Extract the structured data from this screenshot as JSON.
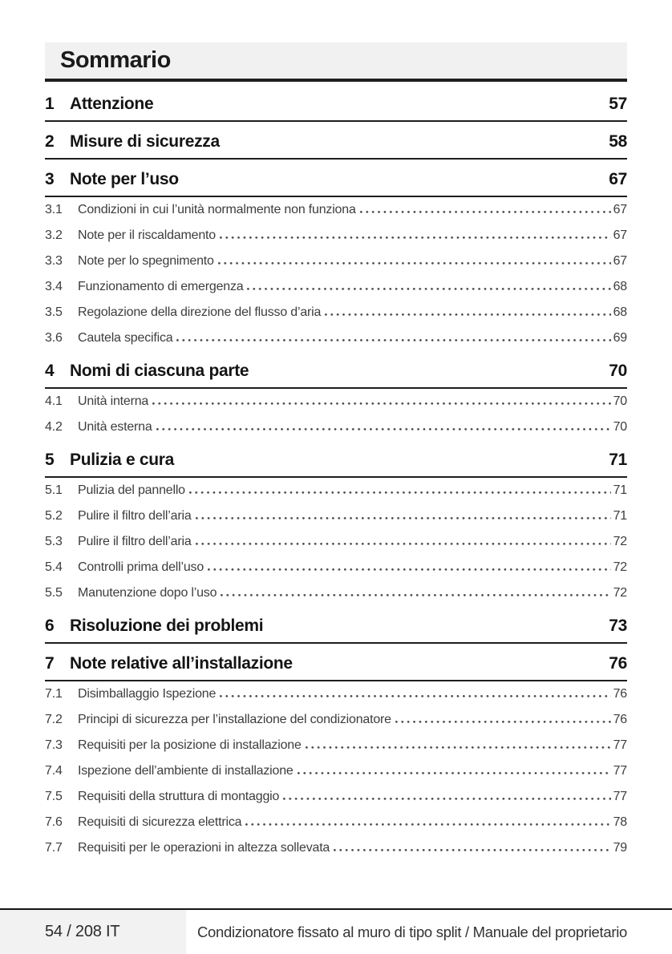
{
  "header": {
    "title": "Sommario"
  },
  "toc": {
    "entries": [
      {
        "kind": "chapter",
        "num": "1",
        "label": "Attenzione",
        "page": "57"
      },
      {
        "kind": "chapter",
        "num": "2",
        "label": "Misure di sicurezza",
        "page": "58"
      },
      {
        "kind": "chapter",
        "num": "3",
        "label": "Note per l’uso",
        "page": "67"
      },
      {
        "kind": "sub",
        "num": "3.1",
        "label": "Condizioni in cui l’unità normalmente non funziona",
        "page": "67"
      },
      {
        "kind": "sub",
        "num": "3.2",
        "label": "Note per il riscaldamento",
        "page": "67"
      },
      {
        "kind": "sub",
        "num": "3.3",
        "label": "Note per lo spegnimento",
        "page": "67"
      },
      {
        "kind": "sub",
        "num": "3.4",
        "label": "Funzionamento di emergenza",
        "page": "68"
      },
      {
        "kind": "sub",
        "num": "3.5",
        "label": "Regolazione della direzione del flusso d’aria",
        "page": "68"
      },
      {
        "kind": "sub",
        "num": "3.6",
        "label": "Cautela specifica",
        "page": "69"
      },
      {
        "kind": "chapter",
        "num": "4",
        "label": "Nomi di ciascuna parte",
        "page": "70"
      },
      {
        "kind": "sub",
        "num": "4.1",
        "label": "Unità interna",
        "page": "70"
      },
      {
        "kind": "sub",
        "num": "4.2",
        "label": "Unità esterna",
        "page": "70"
      },
      {
        "kind": "chapter",
        "num": "5",
        "label": "Pulizia e cura",
        "page": "71"
      },
      {
        "kind": "sub",
        "num": "5.1",
        "label": "Pulizia del pannello",
        "page": "71"
      },
      {
        "kind": "sub",
        "num": "5.2",
        "label": "Pulire il filtro dell’aria",
        "page": "71"
      },
      {
        "kind": "sub",
        "num": "5.3",
        "label": "Pulire il filtro dell’aria",
        "page": "72"
      },
      {
        "kind": "sub",
        "num": "5.4",
        "label": "Controlli prima dell’uso",
        "page": "72"
      },
      {
        "kind": "sub",
        "num": "5.5",
        "label": "Manutenzione dopo l’uso",
        "page": "72"
      },
      {
        "kind": "chapter",
        "num": "6",
        "label": "Risoluzione dei problemi",
        "page": "73"
      },
      {
        "kind": "chapter",
        "num": "7",
        "label": "Note relative all’installazione",
        "page": "76"
      },
      {
        "kind": "sub",
        "num": "7.1",
        "label": "Disimballaggio Ispezione",
        "page": "76"
      },
      {
        "kind": "sub",
        "num": "7.2",
        "label": "Principi di sicurezza per l’installazione del condizionatore",
        "page": "76"
      },
      {
        "kind": "sub",
        "num": "7.3",
        "label": "Requisiti per la posizione di installazione",
        "page": "77"
      },
      {
        "kind": "sub",
        "num": "7.4",
        "label": "Ispezione dell’ambiente di installazione",
        "page": "77"
      },
      {
        "kind": "sub",
        "num": "7.5",
        "label": "Requisiti della struttura di montaggio",
        "page": "77"
      },
      {
        "kind": "sub",
        "num": "7.6",
        "label": "Requisiti di sicurezza elettrica",
        "page": "78"
      },
      {
        "kind": "sub",
        "num": "7.7",
        "label": "Requisiti per le operazioni in altezza sollevata",
        "page": "79"
      }
    ]
  },
  "footer": {
    "page_indicator": "54 / 208 IT",
    "doc_title": "Condizionatore fissato al muro di tipo split / Manuale del proprietario"
  }
}
